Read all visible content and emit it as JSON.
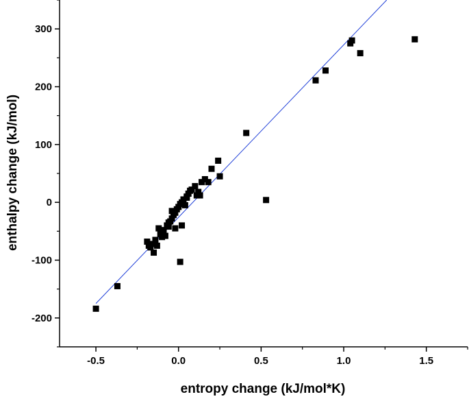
{
  "chart_data": {
    "type": "scatter",
    "title": "",
    "xlabel": "entropy change (kJ/mol*K)",
    "ylabel": "enthalpy change (kJ/mol)",
    "xlim": [
      -0.72,
      1.75
    ],
    "ylim": [
      -250,
      350
    ],
    "x_ticks": [
      -0.5,
      0.0,
      0.5,
      1.0,
      1.5
    ],
    "x_tick_labels": [
      "-0.5",
      "0.0",
      "0.5",
      "1.0",
      "1.5"
    ],
    "y_ticks": [
      -200,
      -100,
      0,
      100,
      200,
      300
    ],
    "y_tick_labels": [
      "-200",
      "-100",
      "0",
      "100",
      "200",
      "300"
    ],
    "grid": false,
    "legend": "none",
    "colors": {
      "points": "#000000",
      "fit_line": "#1f3fd8",
      "axes": "#000000"
    },
    "series": [
      {
        "marker": "square",
        "x": [
          -0.5,
          -0.37,
          -0.19,
          -0.18,
          -0.17,
          -0.16,
          -0.15,
          -0.14,
          -0.12,
          -0.11,
          -0.1,
          -0.09,
          -0.08,
          -0.07,
          -0.06,
          -0.05,
          -0.04,
          -0.03,
          -0.02,
          -0.01,
          0.0,
          0.01,
          0.02,
          0.03,
          0.04,
          0.05,
          0.06,
          0.08,
          0.1,
          0.12,
          0.14,
          0.16,
          0.18,
          0.2,
          0.24,
          0.25,
          0.41,
          0.53,
          0.83,
          0.89,
          1.04,
          1.05,
          1.1,
          1.43,
          0.01,
          -0.02,
          0.02,
          -0.06,
          -0.1,
          0.05,
          0.11,
          -0.13,
          -0.04,
          0.07,
          0.13
        ],
        "y": [
          -184,
          -145,
          -68,
          -75,
          -78,
          -72,
          -87,
          -65,
          -45,
          -55,
          -52,
          -48,
          -58,
          -40,
          -35,
          -33,
          -28,
          -22,
          -18,
          -12,
          -8,
          -3,
          0,
          5,
          -5,
          10,
          15,
          22,
          28,
          18,
          35,
          40,
          35,
          58,
          72,
          45,
          120,
          4,
          211,
          228,
          275,
          280,
          258,
          282,
          -103,
          -45,
          -40,
          -42,
          -60,
          8,
          12,
          -75,
          -15,
          20,
          12
        ]
      }
    ],
    "fit_line": {
      "x": [
        -0.5,
        1.26
      ],
      "y": [
        -175,
        350
      ]
    }
  }
}
